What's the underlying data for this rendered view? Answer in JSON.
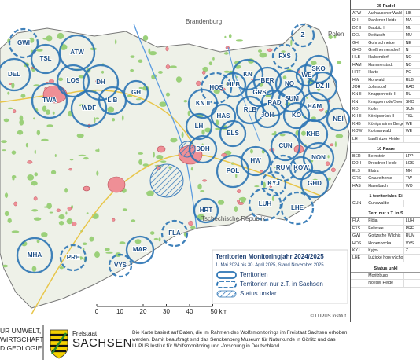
{
  "map": {
    "places": [
      "Brandenburg",
      "Polen",
      "Tschechische Republik"
    ],
    "territories": [
      {
        "label": "GWI",
        "legend_item": 1
      },
      {
        "label": "TSL",
        "legend_item": 0
      },
      {
        "label": "ATW",
        "legend_item": 0
      },
      {
        "label": "DEL",
        "legend_item": 0
      },
      {
        "label": "LOS",
        "legend_item": 0
      },
      {
        "label": "DH",
        "legend_item": 0
      },
      {
        "label": "TWA",
        "legend_item": 0
      },
      {
        "label": "WDF",
        "legend_item": 0
      },
      {
        "label": "LIB",
        "legend_item": 0
      },
      {
        "label": "GH",
        "legend_item": 0
      },
      {
        "label": "HOS",
        "legend_item": 1
      },
      {
        "label": "KN",
        "legend_item": 0
      },
      {
        "label": "BER",
        "legend_item": 0
      },
      {
        "label": "NO",
        "legend_item": 0
      },
      {
        "label": "FXS",
        "legend_item": 1
      },
      {
        "label": "Z",
        "legend_item": 1
      },
      {
        "label": "SKO",
        "legend_item": 0
      },
      {
        "label": "DZ II",
        "legend_item": 0
      },
      {
        "label": "WE",
        "legend_item": 0
      },
      {
        "label": "HLB",
        "legend_item": 0
      },
      {
        "label": "KN II",
        "legend_item": 0
      },
      {
        "label": "GRS",
        "legend_item": 0
      },
      {
        "label": "RLB",
        "legend_item": 0
      },
      {
        "label": "RAD",
        "legend_item": 0
      },
      {
        "label": "SUM",
        "legend_item": 0
      },
      {
        "label": "HAM",
        "legend_item": 0
      },
      {
        "label": "JOH",
        "legend_item": 0
      },
      {
        "label": "KO",
        "legend_item": 0
      },
      {
        "label": "NEI",
        "legend_item": 0
      },
      {
        "label": "HAS",
        "legend_item": 0
      },
      {
        "label": "LH",
        "legend_item": 0
      },
      {
        "label": "ELS",
        "legend_item": 0
      },
      {
        "label": "DDH",
        "legend_item": 0
      },
      {
        "label": "KHB",
        "legend_item": 0
      },
      {
        "label": "CUN",
        "legend_item": 0
      },
      {
        "label": "HW",
        "legend_item": 0
      },
      {
        "label": "POL",
        "legend_item": 0
      },
      {
        "label": "NON",
        "legend_item": 0
      },
      {
        "label": "RUM",
        "legend_item": 1
      },
      {
        "label": "KOW",
        "legend_item": 0
      },
      {
        "label": "KYJ",
        "legend_item": 1
      },
      {
        "label": "GHD",
        "legend_item": 0
      },
      {
        "label": "LHE",
        "legend_item": 1
      },
      {
        "label": "LUH",
        "legend_item": 1
      },
      {
        "label": "HRT",
        "legend_item": 0
      },
      {
        "label": "FLA",
        "legend_item": 1
      },
      {
        "label": "MAR",
        "legend_item": 0
      },
      {
        "label": "VYS",
        "legend_item": 1
      },
      {
        "label": "MHA",
        "legend_item": 0
      },
      {
        "label": "PRE",
        "legend_item": 1
      }
    ],
    "legend": {
      "title": "Territorien Monitoringjahr 2024/2025",
      "subtitle": "1. Mai 2024 bis 30. April 2025, Stand November 2025",
      "items": [
        "Territorien",
        "Territorien nur z.T. in Sachsen",
        "Status unklar"
      ]
    },
    "scale_bar": {
      "ticks": [
        0,
        10,
        20,
        30,
        40,
        {
          "value": 50,
          "label": "50 km"
        }
      ]
    },
    "copyright": "© LUPUS Institut"
  },
  "panel": {
    "sections": [
      {
        "title": "35 Rudel",
        "rows": [
          {
            "code": "ATW",
            "name": "Authausener Wald",
            "code2": "LIB"
          },
          {
            "code": "DH",
            "name": "Dahlener Heide",
            "code2": "MA"
          },
          {
            "code": "DZ II",
            "name": "Daubitz II",
            "code2": "ML"
          },
          {
            "code": "DEL",
            "name": "Delitzsch",
            "code2": "MU"
          },
          {
            "code": "GH",
            "name": "Gohrischheide",
            "code2": "NE"
          },
          {
            "code": "GHD",
            "name": "Großhennersdorf",
            "code2": "N"
          },
          {
            "code": "HLB",
            "name": "Halbendorf",
            "code2": "NO"
          },
          {
            "code": "HAM",
            "name": "Hammerstadt",
            "code2": "NO"
          },
          {
            "code": "HRT",
            "name": "Harte",
            "code2": "PO"
          },
          {
            "code": "HW",
            "name": "Hohwald",
            "code2": "RLB"
          },
          {
            "code": "JOH",
            "name": "Johnsdorf",
            "code2": "RAD"
          },
          {
            "code": "KN II",
            "name": "Knappenrode II",
            "code2": "RU"
          },
          {
            "code": "KN",
            "name": "Knappenrode/Seenland",
            "code2": "SKO"
          },
          {
            "code": "KO",
            "name": "Kollm",
            "code2": "SUM"
          },
          {
            "code": "KH II",
            "name": "Königsbrück II",
            "code2": "TSL"
          },
          {
            "code": "KHB",
            "name": "Königshainer Berge",
            "code2": "WE"
          },
          {
            "code": "KOW",
            "name": "Kottmarwald",
            "code2": "WE"
          },
          {
            "code": "LH",
            "name": "Laußnitzer Heide"
          }
        ]
      },
      {
        "title": "10 Paare",
        "rows": [
          {
            "code": "BER",
            "name": "Bernstein",
            "code2": "LPP"
          },
          {
            "code": "DDH",
            "name": "Dresdner Heide",
            "code2": "LOS"
          },
          {
            "code": "ELS",
            "name": "Elstra",
            "code2": "MH"
          },
          {
            "code": "GRS",
            "name": "Graureiherse",
            "code2": "TW"
          },
          {
            "code": "HAS",
            "name": "Haselbach",
            "code2": "WO"
          }
        ]
      },
      {
        "title": "1 territoriales Ei",
        "rows": [
          {
            "code": "CUN",
            "name": "Cunewalde"
          }
        ]
      },
      {
        "title": "Terr. nur z.T. in S",
        "rows": [
          {
            "code": "FLA",
            "name": "Flöja",
            "code2": "LUH"
          },
          {
            "code": "FXS",
            "name": "Felixsee",
            "code2": "PRE"
          },
          {
            "code": "GWI",
            "name": "Goitzsche Wildnis",
            "code2": "RUM"
          },
          {
            "code": "HOS",
            "name": "Hohenbocka",
            "code2": "VYS"
          },
          {
            "code": "KYJ",
            "name": "Kyjov",
            "code2": "Z"
          },
          {
            "code": "LHE",
            "name": "Lužické hory východ"
          }
        ]
      },
      {
        "title": "Status unkl",
        "rows": [
          {
            "name": "Moritzburg"
          },
          {
            "name": "Noeser Heide"
          }
        ]
      }
    ]
  },
  "footer": {
    "ministry": [
      "ÜR UMWELT,",
      "WIRTSCHAFT",
      "D GEOLOGIE"
    ],
    "state": "Freistaat",
    "state_name": "SACHSEN",
    "note": "Die Karte basiert auf Daten, die im Rahmen des Wolfsmonitorings im Freistaat Sachsen erhoben werden. Damit beauftragt sind das Senckenberg Museum für Naturkunde in Görlitz und das LUPUS Institut für Wolfsmonitoring und -forschung in Deutschland."
  }
}
